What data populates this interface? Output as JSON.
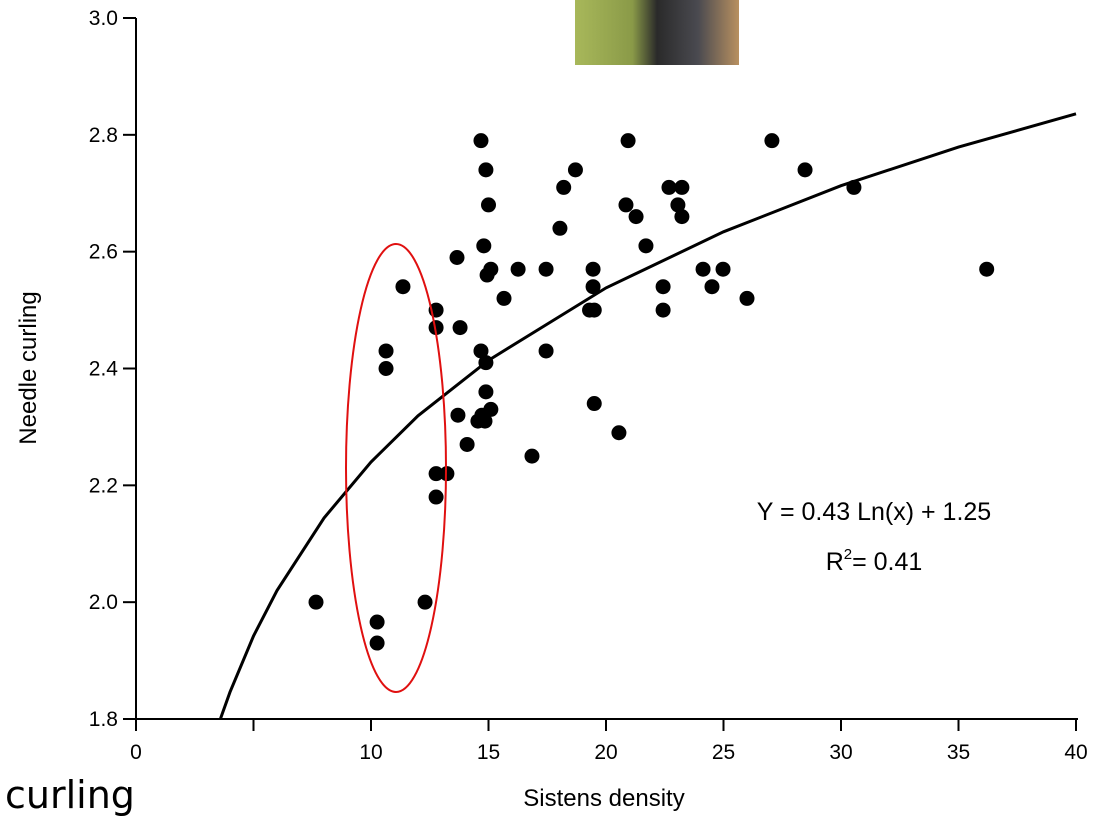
{
  "chart_data": {
    "type": "scatter",
    "x_label": "Sistens density",
    "y_label": "Needle curling",
    "side_text": "curling",
    "equation": "Y = 0.43 Ln(x) + 1.25",
    "r2_label": "R",
    "r2_sup": "2",
    "r2_value": "= 0.41",
    "xlim": [
      0,
      40
    ],
    "ylim": [
      1.8,
      3.0
    ],
    "xticks": [
      0,
      {
        "value": 5,
        "label": null
      },
      10,
      15,
      20,
      25,
      30,
      35,
      40
    ],
    "yticks": [
      {
        "value": 1.8,
        "label": "1.8"
      },
      {
        "value": 2,
        "label": "2.0"
      },
      2.2,
      2.4,
      2.6,
      2.8,
      {
        "value": 3,
        "label": "3.0"
      }
    ],
    "color": "#000000",
    "fit_color": "#000000",
    "x": [
      7.66,
      10.26,
      10.26,
      12.3,
      10.64,
      10.64,
      11.36,
      12.77,
      12.77,
      12.77,
      12.77,
      13.23,
      13.66,
      13.79,
      13.7,
      14.09,
      14.55,
      14.72,
      15.1,
      14.68,
      14.89,
      14.94,
      15.1,
      14.68,
      14.89,
      14.89,
      14.85,
      14.8,
      15.0,
      15.66,
      16.26,
      16.85,
      17.45,
      17.45,
      18.04,
      18.2,
      18.7,
      19.45,
      19.45,
      19.3,
      19.5,
      19.5,
      20.55,
      20.94,
      20.85,
      21.28,
      21.7,
      22.68,
      23.23,
      23.06,
      23.23,
      22.43,
      22.43,
      24.13,
      24.98,
      24.51,
      26.0,
      27.06,
      28.47,
      30.55,
      36.2
    ],
    "y": [
      2.0,
      1.966,
      1.93,
      2.0,
      2.43,
      2.4,
      2.54,
      2.5,
      2.47,
      2.22,
      2.18,
      2.22,
      2.59,
      2.47,
      2.32,
      2.27,
      2.31,
      2.32,
      2.33,
      2.79,
      2.74,
      2.56,
      2.57,
      2.43,
      2.41,
      2.36,
      2.31,
      2.61,
      2.68,
      2.52,
      2.57,
      2.25,
      2.43,
      2.57,
      2.64,
      2.71,
      2.74,
      2.57,
      2.54,
      2.5,
      2.5,
      2.34,
      2.29,
      2.79,
      2.68,
      2.66,
      2.61,
      2.71,
      2.71,
      2.68,
      2.66,
      2.54,
      2.5,
      2.57,
      2.57,
      2.54,
      2.52,
      2.79,
      2.74,
      2.71,
      2.57
    ],
    "fit": {
      "x": [
        3.6,
        4,
        5,
        6,
        8,
        10,
        12,
        15,
        20,
        25,
        30,
        35,
        40
      ],
      "y": [
        1.801,
        1.846,
        1.942,
        2.02,
        2.144,
        2.24,
        2.319,
        2.414,
        2.538,
        2.634,
        2.713,
        2.779,
        2.836
      ]
    }
  }
}
